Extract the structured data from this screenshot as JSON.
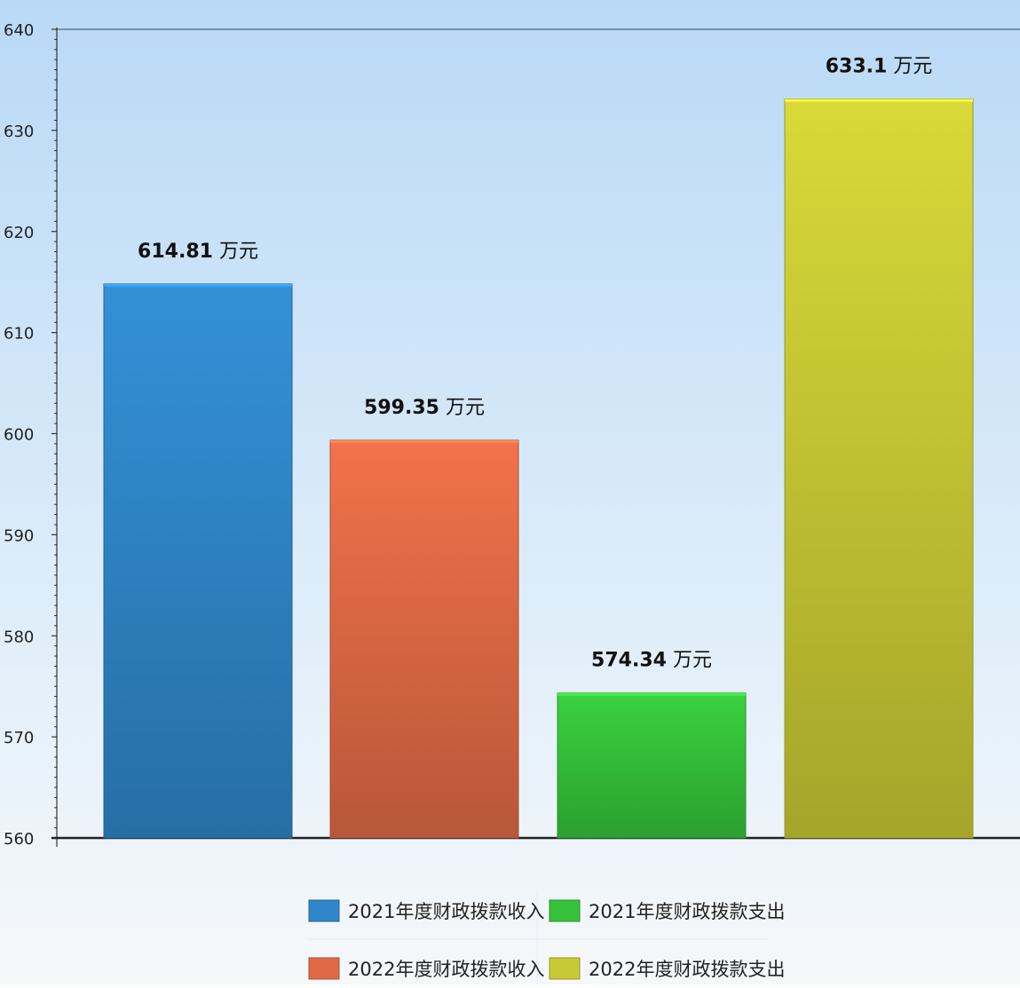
{
  "chart_data": {
    "type": "bar",
    "title": "",
    "xlabel": "",
    "ylabel": "",
    "ylim": [
      560,
      640
    ],
    "y_ticks": [
      "560",
      "570",
      "580",
      "590",
      "600",
      "610",
      "620",
      "630",
      "640"
    ],
    "grid": false,
    "legend_position": "bottom",
    "data_label_suffix": " 万元",
    "bars": [
      {
        "name": "2021年度财政拨款收入",
        "value": 614.81,
        "label": "614.81",
        "color": "#2f86c8"
      },
      {
        "name": "2022年度财政拨款收入",
        "value": 599.35,
        "label": "599.35",
        "color": "#e06a45"
      },
      {
        "name": "2021年度财政拨款支出",
        "value": 574.34,
        "label": "574.34",
        "color": "#36c23a"
      },
      {
        "name": "2022年度财政拨款支出",
        "value": 633.1,
        "label": "633.1",
        "color": "#c9c935"
      }
    ],
    "legend": [
      {
        "label": "2021年度财政拨款收入",
        "color": "#2f86c8"
      },
      {
        "label": "2021年度财政拨款支出",
        "color": "#36c23a"
      },
      {
        "label": "2022年度财政拨款收入",
        "color": "#e06a45"
      },
      {
        "label": "2022年度财政拨款支出",
        "color": "#c9c935"
      }
    ]
  }
}
